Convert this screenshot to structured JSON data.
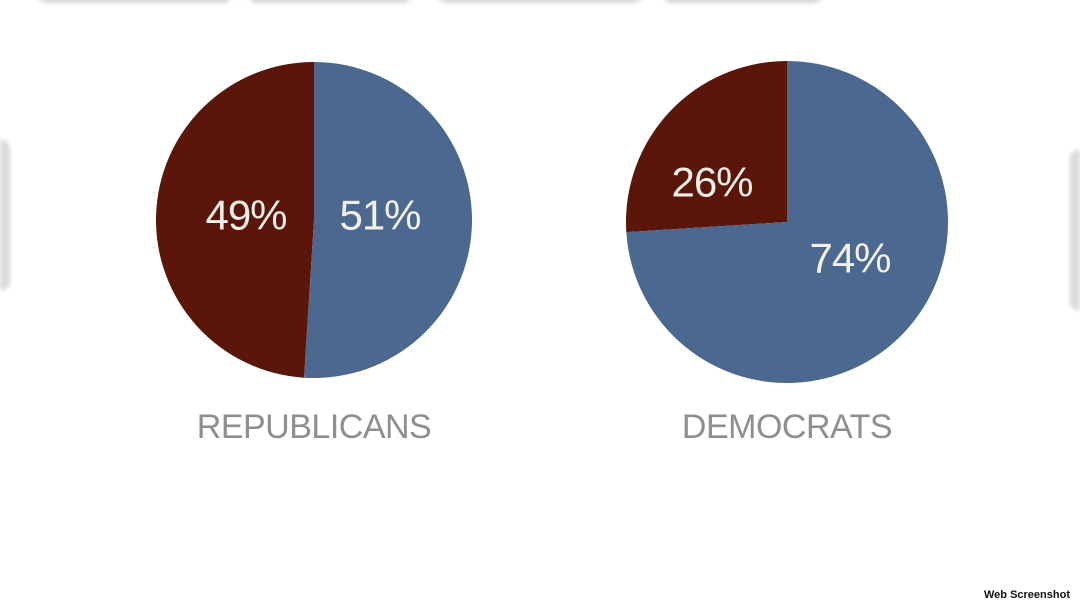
{
  "colors": {
    "blue": "#4a6890",
    "dark_red": "#5c1509",
    "label_text": "#f3efe9",
    "group_label": "#8f8f8f"
  },
  "chart_data": [
    {
      "type": "pie",
      "title": "REPUBLICANS",
      "slices": [
        {
          "label": "51%",
          "value": 51,
          "color": "#4a6890"
        },
        {
          "label": "49%",
          "value": 49,
          "color": "#5c1509"
        }
      ]
    },
    {
      "type": "pie",
      "title": "DEMOCRATS",
      "slices": [
        {
          "label": "74%",
          "value": 74,
          "color": "#4a6890"
        },
        {
          "label": "26%",
          "value": 26,
          "color": "#5c1509"
        }
      ]
    }
  ],
  "watermark": "Web Screenshot"
}
